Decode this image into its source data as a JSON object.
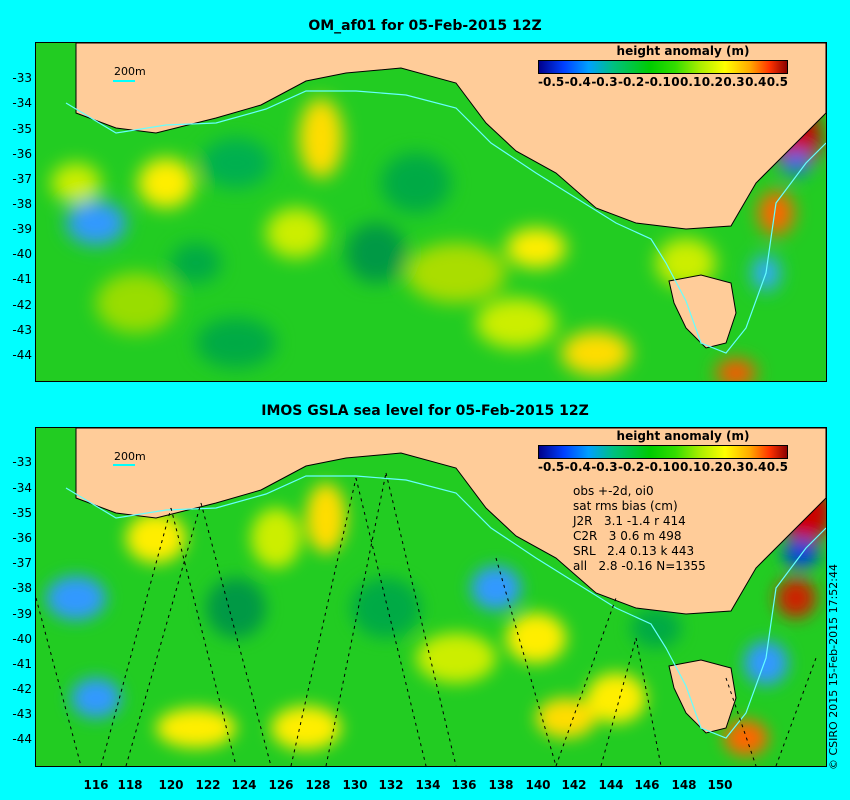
{
  "top_panel": {
    "title": "OM_af01 for 05-Feb-2015 12Z",
    "scale_label": "200m",
    "colorbar_title": "height anomaly (m)"
  },
  "bottom_panel": {
    "title": "IMOS GSLA sea level  for 05-Feb-2015 12Z",
    "scale_label": "200m",
    "colorbar_title": "height anomaly (m)",
    "stats_lines": [
      "obs +-2d, oi0",
      "sat rms bias (cm)",
      "J2R   3.1 -1.4 r 414",
      "C2R   3 0.6 m 498",
      "SRL   2.4 0.13 k 443",
      "all   2.8 -0.16 N=1355"
    ]
  },
  "colorbar_ticks": [
    "-0.5",
    "-0.4",
    "-0.3",
    "-0.2",
    "-0.1",
    "0",
    "0.1",
    "0.2",
    "0.3",
    "0.4",
    "0.5"
  ],
  "lat_ticks": [
    "-33",
    "-34",
    "-35",
    "-36",
    "-37",
    "-38",
    "-39",
    "-40",
    "-41",
    "-42",
    "-43",
    "-44"
  ],
  "lon_ticks": [
    "116",
    "118",
    "120",
    "122",
    "124",
    "126",
    "128",
    "130",
    "132",
    "134",
    "136",
    "138",
    "140",
    "142",
    "144",
    "146",
    "148",
    "150"
  ],
  "credit": "© CSIRO 2015  15-Feb-2015 17:52:44",
  "colors": {
    "background": "#00ffff",
    "land": "#ffcc99",
    "ocean_base": "#22cc22"
  }
}
